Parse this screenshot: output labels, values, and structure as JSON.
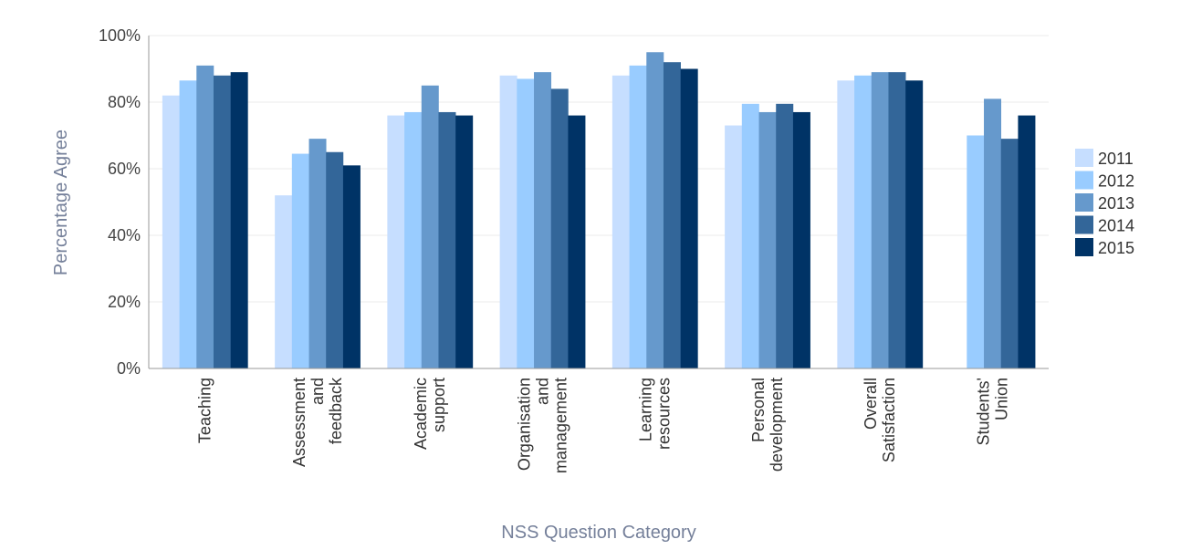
{
  "chart_data": {
    "type": "bar",
    "title": "",
    "xlabel": "NSS Question Category",
    "ylabel": "Percentage Agree",
    "ylim": [
      0,
      100
    ],
    "yticks": [
      "0%",
      "20%",
      "40%",
      "60%",
      "80%",
      "100%"
    ],
    "grid": true,
    "legend_position": "right",
    "categories": [
      [
        "Teaching"
      ],
      [
        "Assessment",
        "and",
        "feedback"
      ],
      [
        "Academic",
        "support"
      ],
      [
        "Organisation",
        "and",
        "management"
      ],
      [
        "Learning",
        "resources"
      ],
      [
        "Personal",
        "development"
      ],
      [
        "Overall",
        "Satisfaction"
      ],
      [
        "Students'",
        "Union"
      ]
    ],
    "series": [
      {
        "name": "2011",
        "color": "#c6deff",
        "values": [
          82,
          52,
          76,
          88,
          88,
          73,
          86.5,
          null
        ]
      },
      {
        "name": "2012",
        "color": "#99ccff",
        "values": [
          86.5,
          64.5,
          77,
          87,
          91,
          79.5,
          88,
          70
        ]
      },
      {
        "name": "2013",
        "color": "#6699cc",
        "values": [
          91,
          69,
          85,
          89,
          95,
          77,
          89,
          81
        ]
      },
      {
        "name": "2014",
        "color": "#336699",
        "values": [
          88,
          65,
          77,
          84,
          92,
          79.5,
          89,
          69
        ]
      },
      {
        "name": "2015",
        "color": "#003366",
        "values": [
          89,
          61,
          76,
          76,
          90,
          77,
          86.5,
          76
        ]
      }
    ]
  }
}
